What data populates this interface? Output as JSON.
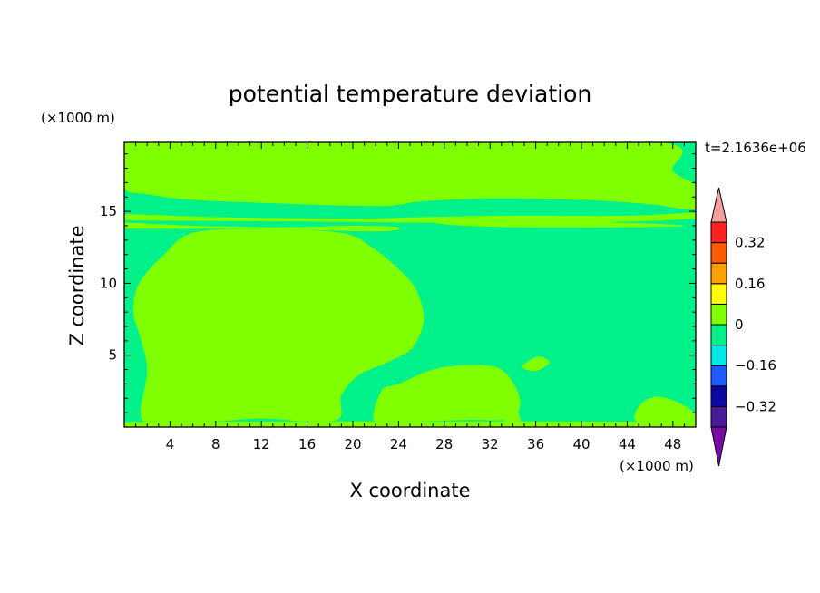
{
  "chart_data": {
    "type": "heatmap",
    "title": "potential temperature deviation",
    "xlabel": "X coordinate",
    "ylabel": "Z coordinate",
    "x_unit": "(×1000 m)",
    "y_unit": "(×1000 m)",
    "time_label": "t=2.1636e+06",
    "xlim": [
      0,
      50
    ],
    "ylim": [
      0,
      19.8
    ],
    "x_ticks": [
      4,
      8,
      12,
      16,
      20,
      24,
      28,
      32,
      36,
      40,
      44,
      48
    ],
    "y_ticks": [
      5,
      10,
      15
    ],
    "levels": [
      -0.4,
      -0.32,
      -0.24,
      -0.16,
      -0.08,
      0,
      0.08,
      0.16,
      0.24,
      0.32,
      0.4
    ],
    "colorbar_labels": [
      "0.32",
      "0.16",
      "0",
      "-0.16",
      "-0.32"
    ],
    "colorbar_label_values": [
      0.32,
      0.16,
      0,
      -0.16,
      -0.32
    ],
    "colors": {
      "below": "#7a0aa8",
      "bins": [
        "#4b1a96",
        "#0a0aa0",
        "#1e5aff",
        "#00e8e8",
        "#00f08a",
        "#80ff00",
        "#ffff00",
        "#ffa000",
        "#ff5a00",
        "#ff2020"
      ],
      "above": "#f4a0a0"
    },
    "regions": [
      {
        "level": "0..0.08",
        "outline": [
          [
            0,
            16.7
          ],
          [
            2,
            16.2
          ],
          [
            6,
            15.8
          ],
          [
            12,
            15.6
          ],
          [
            20,
            15.4
          ],
          [
            24,
            15.5
          ],
          [
            25,
            16.5
          ],
          [
            25,
            19.8
          ],
          [
            0,
            19.8
          ]
        ],
        "note": "top-left band"
      },
      {
        "level": "0..0.08",
        "outline": [
          [
            25,
            19.8
          ],
          [
            25,
            16.5
          ],
          [
            24,
            15.5
          ],
          [
            26,
            15.7
          ],
          [
            32,
            15.9
          ],
          [
            40,
            15.8
          ],
          [
            46,
            15.5
          ],
          [
            50,
            15.2
          ],
          [
            50,
            16.8
          ],
          [
            48,
            17.8
          ],
          [
            47,
            19.8
          ]
        ],
        "note": "top-right band"
      },
      {
        "level": "0..0.08",
        "outline": [
          [
            0,
            14.8
          ],
          [
            8,
            14.6
          ],
          [
            20,
            14.5
          ],
          [
            26,
            14.6
          ],
          [
            34,
            14.7
          ],
          [
            44,
            14.7
          ],
          [
            50,
            14.9
          ],
          [
            50,
            14.5
          ],
          [
            40,
            14.2
          ],
          [
            28,
            14.2
          ],
          [
            16,
            14.3
          ],
          [
            0,
            14.4
          ]
        ],
        "note": "thin band at z≈14.5"
      },
      {
        "level": "0..0.08",
        "outline": [
          [
            0,
            14.2
          ],
          [
            6,
            14
          ],
          [
            14,
            13.9
          ],
          [
            20,
            14
          ],
          [
            24,
            13.9
          ],
          [
            22,
            13.6
          ],
          [
            12,
            13.8
          ],
          [
            0,
            13.8
          ]
        ],
        "note": "thin band at z≈14"
      },
      {
        "level": "0..0.08",
        "outline": [
          [
            28,
            14.4
          ],
          [
            36,
            14.3
          ],
          [
            44,
            14.2
          ],
          [
            49,
            14
          ],
          [
            44,
            13.9
          ],
          [
            34,
            13.9
          ],
          [
            28,
            14.1
          ]
        ],
        "note": "thin band right z≈14"
      },
      {
        "level": "0..0.08",
        "outline": [
          [
            1.5,
            0.6
          ],
          [
            2,
            4
          ],
          [
            1.3,
            6.5
          ],
          [
            0.8,
            8
          ],
          [
            1.3,
            10
          ],
          [
            3.5,
            12
          ],
          [
            6,
            13.5
          ],
          [
            12,
            13.8
          ],
          [
            19,
            13.5
          ],
          [
            21.5,
            12.6
          ],
          [
            24,
            11
          ],
          [
            25.5,
            9.6
          ],
          [
            26.2,
            7.5
          ],
          [
            25.2,
            5.5
          ],
          [
            23,
            4.5
          ],
          [
            20.5,
            3.6
          ],
          [
            19,
            2.2
          ],
          [
            18.8,
            0.6
          ],
          [
            16,
            0.4
          ],
          [
            12,
            0.6
          ],
          [
            8,
            0.4
          ],
          [
            4,
            0.3
          ]
        ],
        "note": "central warm bubble"
      },
      {
        "level": "0..0.08",
        "outline": [
          [
            22,
            0.3
          ],
          [
            22.5,
            2.5
          ],
          [
            24,
            3
          ],
          [
            27,
            4
          ],
          [
            30,
            4.3
          ],
          [
            33,
            4
          ],
          [
            34.6,
            2
          ],
          [
            33.8,
            0.6
          ],
          [
            30,
            0.5
          ],
          [
            26,
            0.4
          ]
        ],
        "note": "bottom mound x≈28"
      },
      {
        "level": "0..0.08",
        "outline": [
          [
            33.2,
            0.3
          ],
          [
            33.6,
            1.8
          ],
          [
            34.3,
            1.3
          ],
          [
            34.6,
            0.3
          ]
        ],
        "note": "small spike x≈34"
      },
      {
        "level": "0..0.08",
        "outline": [
          [
            34.8,
            4.2
          ],
          [
            36.2,
            4.9
          ],
          [
            37.2,
            4.5
          ],
          [
            36,
            3.9
          ]
        ],
        "note": "small blob x≈36"
      },
      {
        "level": "0..0.08",
        "outline": [
          [
            45,
            0.3
          ],
          [
            45.2,
            1.6
          ],
          [
            47,
            2.1
          ],
          [
            49.6,
            1.2
          ],
          [
            50,
            0.3
          ]
        ],
        "note": "bottom-right mound"
      },
      {
        "level": "0..0.08",
        "outline": [
          [
            0,
            0
          ],
          [
            50,
            0
          ],
          [
            50,
            0.35
          ],
          [
            0,
            0.35
          ]
        ],
        "note": "surface layer"
      }
    ]
  }
}
